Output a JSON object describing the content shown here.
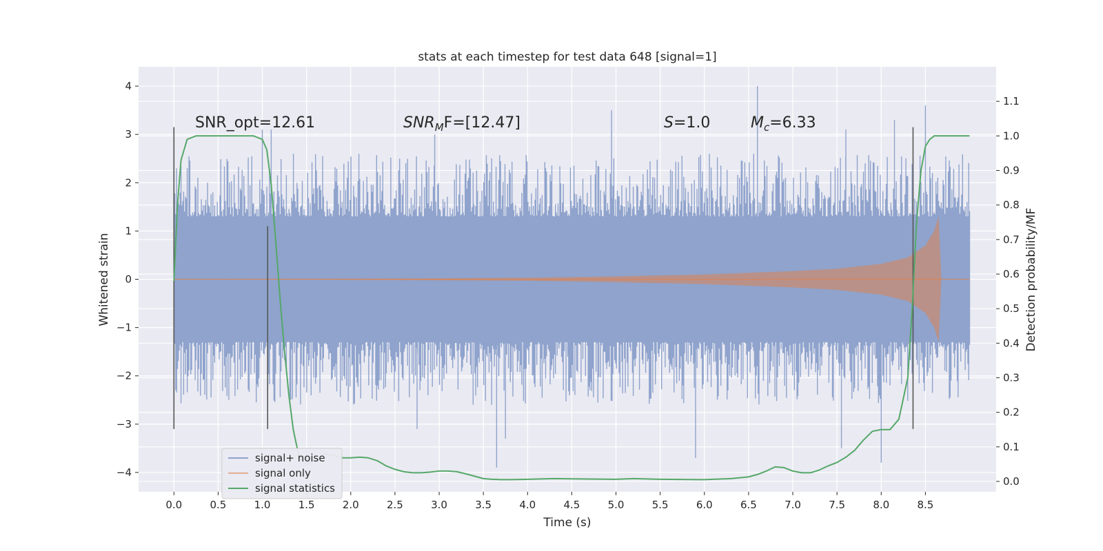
{
  "chart_data": {
    "type": "line",
    "title": "stats at each timestep for test data 648 [signal=1]",
    "xlabel": "Time (s)",
    "ylabel": "Whitened strain",
    "y2label": "Detection probability/MF",
    "xlim": [
      -0.4,
      9.3
    ],
    "ylim": [
      -4.4,
      4.4
    ],
    "y2lim": [
      -0.03,
      1.2
    ],
    "xticks": [
      "0.0",
      "0.5",
      "1.0",
      "1.5",
      "2.0",
      "2.5",
      "3.0",
      "3.5",
      "4.0",
      "4.5",
      "5.0",
      "5.5",
      "6.0",
      "6.5",
      "7.0",
      "7.5",
      "8.0",
      "8.5"
    ],
    "yticks": [
      "4",
      "3",
      "2",
      "1",
      "0",
      "−1",
      "−2",
      "−3",
      "−4"
    ],
    "y2ticks": [
      "1.1",
      "1.0",
      "0.9",
      "0.8",
      "0.7",
      "0.6",
      "0.5",
      "0.4",
      "0.3",
      "0.2",
      "0.1",
      "0.0"
    ],
    "grid": true,
    "legend_placement": "lower-left",
    "annotations": {
      "snr_opt": "SNR_opt=12.61",
      "snr_mf_sym": "SNR",
      "snr_mf_sub": "M",
      "snr_mf_val": "F=[12.47]",
      "s_sym": "S",
      "s_val": "=1.0",
      "mc_sym": "M",
      "mc_sub": "c",
      "mc_val": "=6.33"
    },
    "series": [
      {
        "name": "signal+ noise",
        "color": "#8fa3cc",
        "x_range": [
          0.0,
          9.0
        ],
        "band_lower": -1.3,
        "band_upper": 1.3,
        "peaks_high": [
          [
            0.03,
            2.3
          ],
          [
            1.0,
            3.1
          ],
          [
            1.1,
            3.1
          ],
          [
            2.95,
            3.0
          ],
          [
            4.95,
            3.5
          ],
          [
            6.6,
            4.0
          ],
          [
            7.6,
            3.1
          ],
          [
            8.15,
            3.3
          ],
          [
            8.5,
            3.6
          ]
        ],
        "peaks_low": [
          [
            2.75,
            -3.1
          ],
          [
            3.65,
            -3.9
          ],
          [
            3.75,
            -3.3
          ],
          [
            5.9,
            -3.7
          ],
          [
            7.55,
            -3.5
          ],
          [
            8.0,
            -3.8
          ]
        ]
      },
      {
        "name": "signal only",
        "color": "#dd8452",
        "x_range": [
          0.0,
          9.0
        ],
        "envelope": [
          [
            0.0,
            0.0
          ],
          [
            2.0,
            0.01
          ],
          [
            4.0,
            0.03
          ],
          [
            5.0,
            0.06
          ],
          [
            6.0,
            0.1
          ],
          [
            7.0,
            0.17
          ],
          [
            7.5,
            0.22
          ],
          [
            8.0,
            0.32
          ],
          [
            8.3,
            0.45
          ],
          [
            8.5,
            0.7
          ],
          [
            8.6,
            1.0
          ],
          [
            8.65,
            1.3
          ],
          [
            8.68,
            0.0
          ],
          [
            9.0,
            0.0
          ]
        ]
      },
      {
        "name": "signal statistics",
        "color": "#55a868",
        "x": [
          0.0,
          0.04,
          0.08,
          0.15,
          0.25,
          0.4,
          0.6,
          0.8,
          0.9,
          1.0,
          1.05,
          1.1,
          1.15,
          1.2,
          1.25,
          1.3,
          1.35,
          1.4,
          1.45,
          1.5,
          1.55,
          1.6,
          1.7,
          1.8,
          1.9,
          2.0,
          2.1,
          2.2,
          2.3,
          2.4,
          2.5,
          2.6,
          2.7,
          2.8,
          2.9,
          3.0,
          3.1,
          3.2,
          3.3,
          3.4,
          3.5,
          3.6,
          3.7,
          3.8,
          4.0,
          4.3,
          4.6,
          5.0,
          5.2,
          5.5,
          6.0,
          6.3,
          6.5,
          6.6,
          6.7,
          6.8,
          6.9,
          7.0,
          7.1,
          7.2,
          7.3,
          7.4,
          7.5,
          7.6,
          7.7,
          7.8,
          7.9,
          8.0,
          8.1,
          8.2,
          8.3,
          8.35,
          8.4,
          8.45,
          8.5,
          8.55,
          8.6,
          8.7,
          8.8,
          9.0
        ],
        "y": [
          0.58,
          0.8,
          0.93,
          0.99,
          1.0,
          1.0,
          1.0,
          1.0,
          1.0,
          0.99,
          0.96,
          0.86,
          0.7,
          0.53,
          0.38,
          0.25,
          0.15,
          0.09,
          0.06,
          0.05,
          0.055,
          0.065,
          0.08,
          0.075,
          0.068,
          0.068,
          0.07,
          0.068,
          0.06,
          0.045,
          0.035,
          0.028,
          0.025,
          0.025,
          0.027,
          0.03,
          0.03,
          0.028,
          0.022,
          0.015,
          0.008,
          0.006,
          0.005,
          0.005,
          0.006,
          0.008,
          0.007,
          0.006,
          0.008,
          0.006,
          0.005,
          0.008,
          0.013,
          0.02,
          0.03,
          0.042,
          0.04,
          0.03,
          0.025,
          0.025,
          0.033,
          0.045,
          0.055,
          0.07,
          0.09,
          0.12,
          0.145,
          0.15,
          0.15,
          0.18,
          0.3,
          0.5,
          0.75,
          0.9,
          0.97,
          0.99,
          1.0,
          1.0,
          1.0,
          1.0
        ]
      }
    ],
    "vertical_markers": [
      {
        "x": 0.0,
        "y_range": [
          -3.1,
          3.15
        ]
      },
      {
        "x": 1.06,
        "y_range": [
          -3.1,
          1.1
        ]
      },
      {
        "x": 8.36,
        "y_range": [
          -3.1,
          3.15
        ]
      }
    ]
  }
}
